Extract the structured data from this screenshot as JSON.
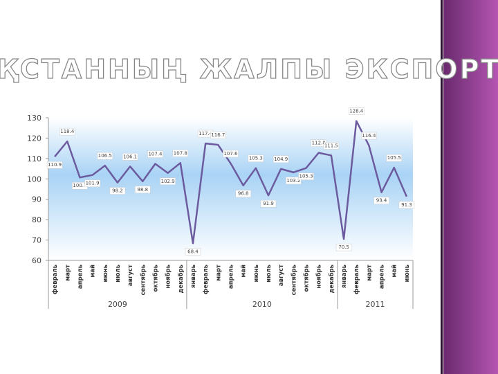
{
  "title": "ҚАЗАҚСТАННЫҢ ЖАЛПЫ ЭКСПОРТЫ",
  "chart_data": {
    "type": "line",
    "color": "#6b5a9e",
    "groups": [
      {
        "name": "2009",
        "categories": [
          "февраль",
          "март",
          "апрель",
          "май",
          "июнь",
          "июль",
          "август",
          "сентябрь",
          "октябрь",
          "ноябрь",
          "декабрь"
        ]
      },
      {
        "name": "2010",
        "categories": [
          "январь",
          "февраль",
          "март",
          "апрель",
          "май",
          "июнь",
          "июль",
          "август",
          "сентябрь",
          "октябрь",
          "ноябрь",
          "декабрь"
        ]
      },
      {
        "name": "2011",
        "categories": [
          "январь",
          "февраль",
          "март",
          "апрель",
          "май",
          "июнь"
        ]
      }
    ],
    "values": [
      110.9,
      118.4,
      100.7,
      101.9,
      106.5,
      98.2,
      106.1,
      98.8,
      107.4,
      102.9,
      107.8,
      68.4,
      117.4,
      116.7,
      107.6,
      96.8,
      105.3,
      91.9,
      104.9,
      103.2,
      105.3,
      112.8,
      111.5,
      70.5,
      128.4,
      116.4,
      93.4,
      105.5,
      91.3
    ],
    "ylim": [
      60,
      130
    ],
    "yticks": [
      60,
      70,
      80,
      90,
      100,
      110,
      120,
      130
    ]
  }
}
